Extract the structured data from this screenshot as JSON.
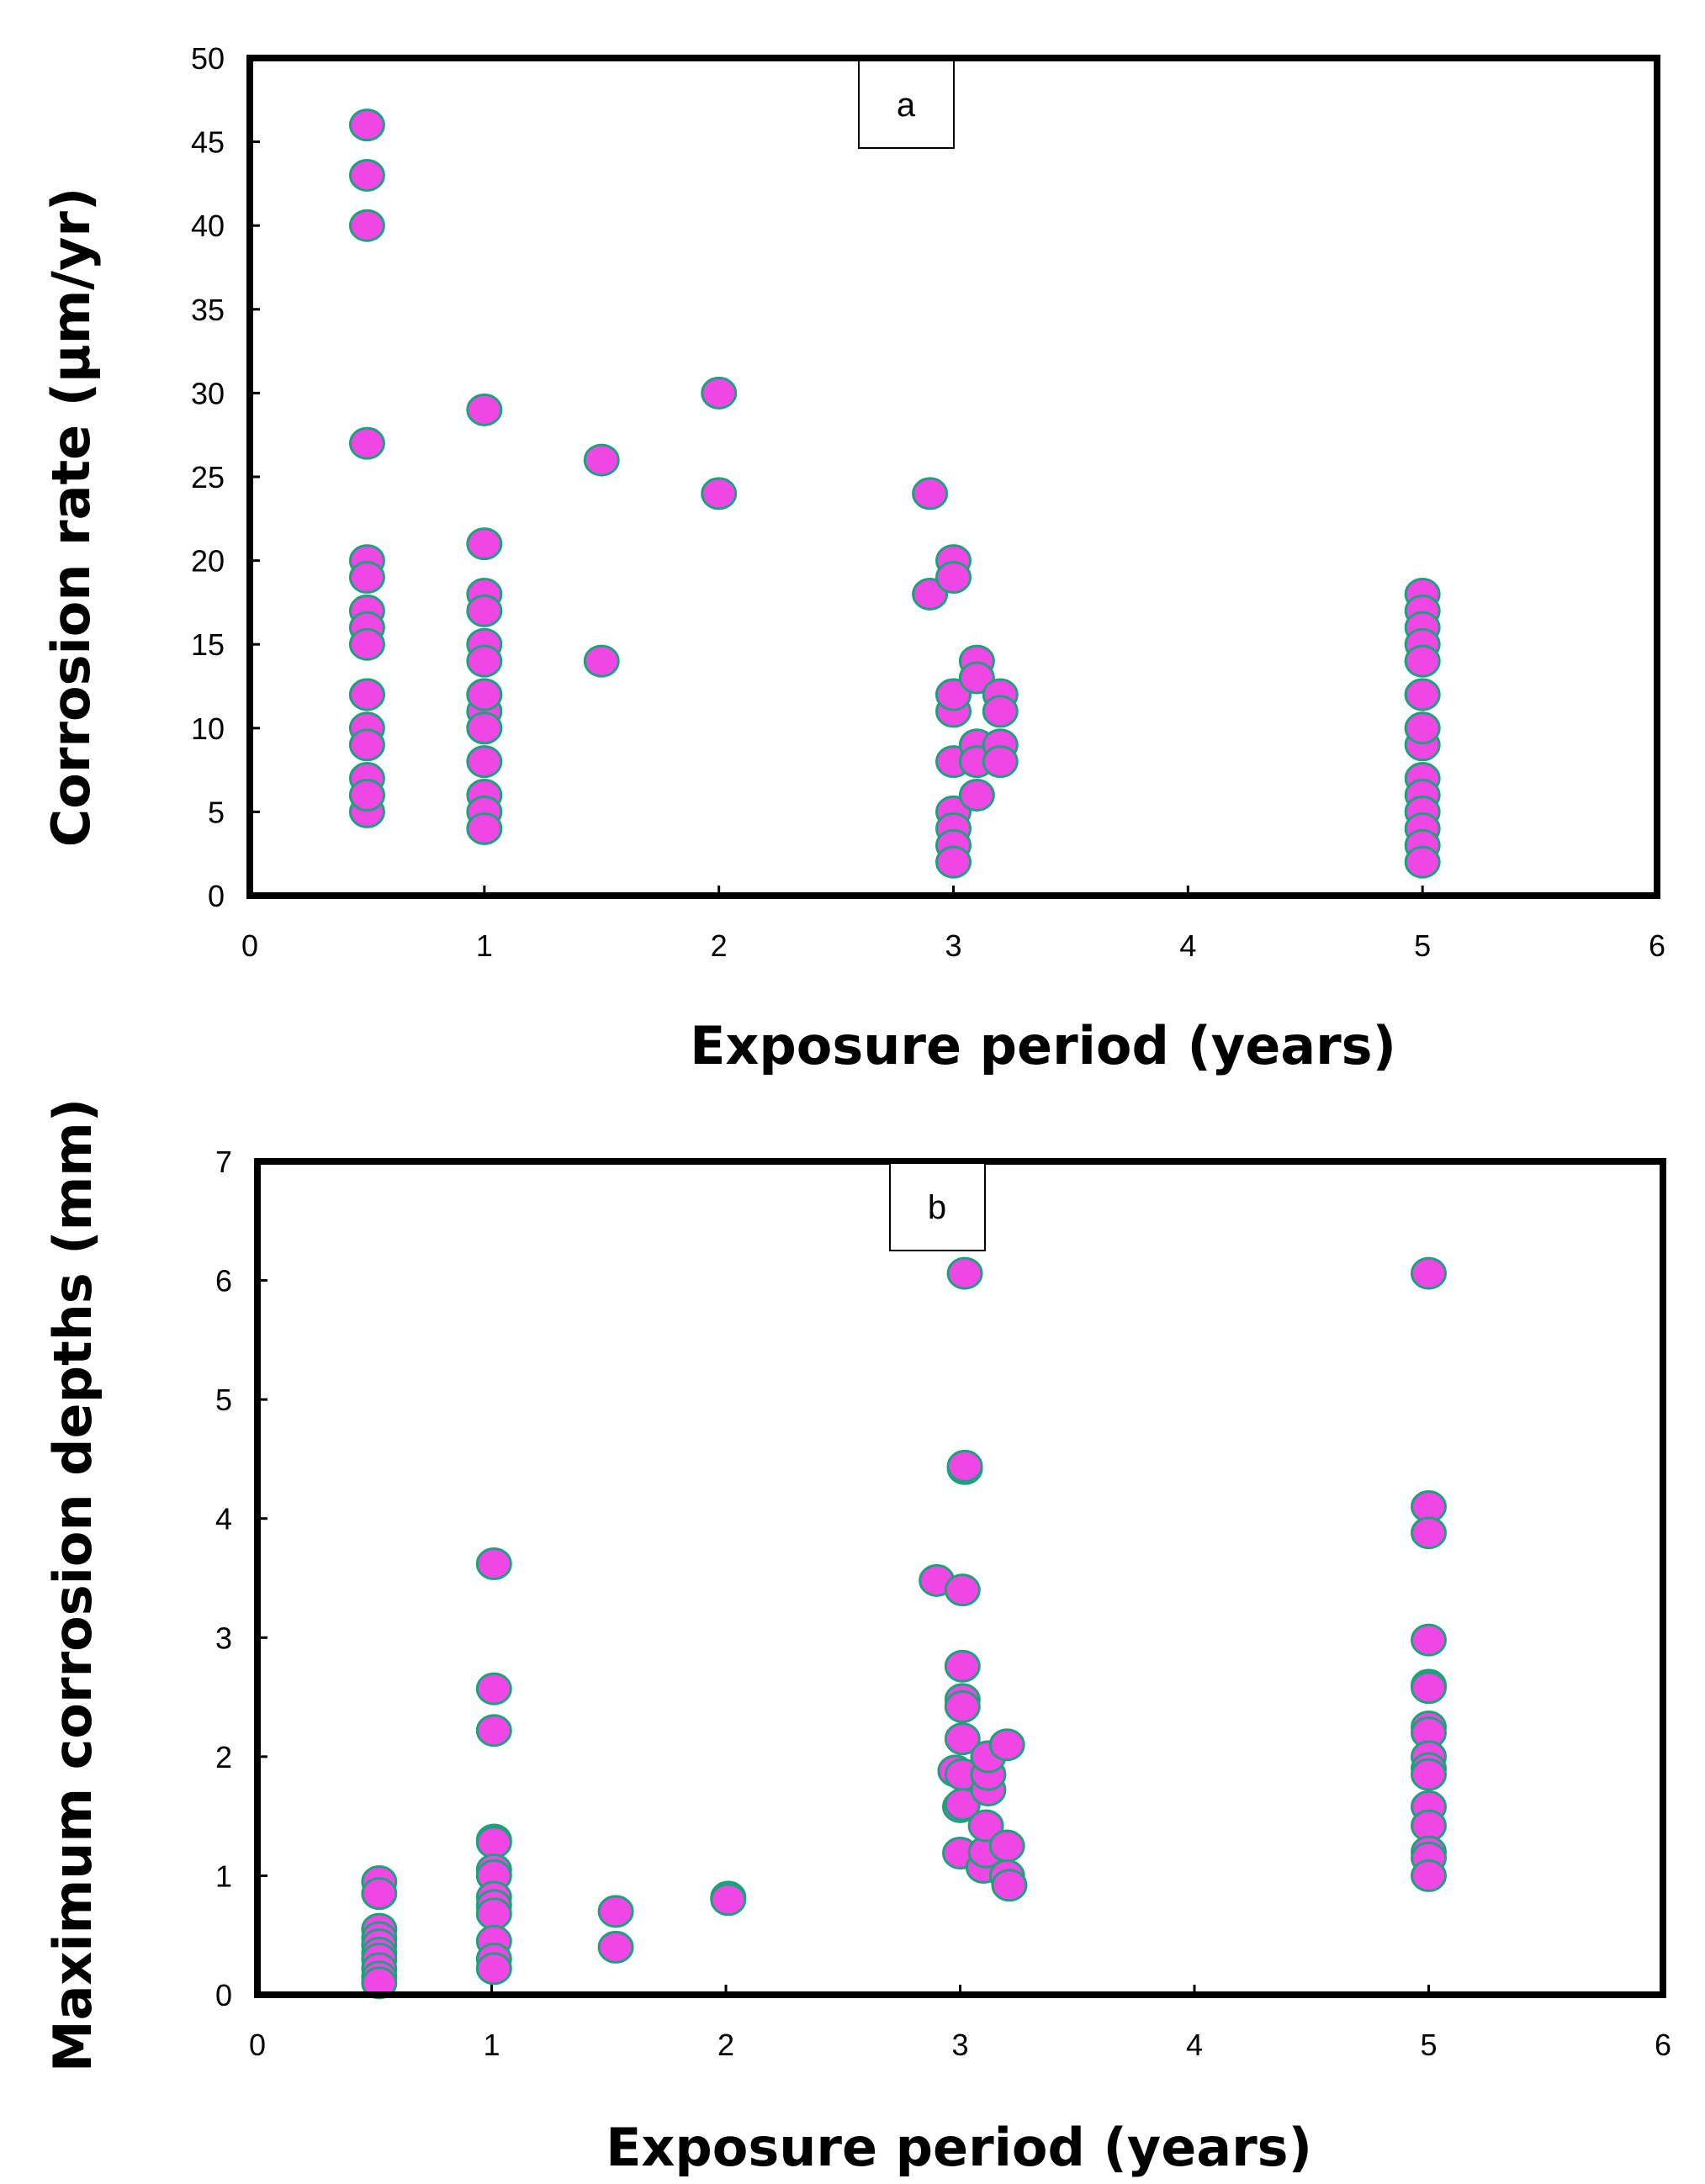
{
  "colors": {
    "marker_fill": "#f046e6",
    "marker_edge": "#1aa37a",
    "axes": "#000000"
  },
  "chart_data": [
    {
      "type": "scatter",
      "panel": "a",
      "title": "",
      "xlabel": "Exposure period (years)",
      "ylabel": "Corrosion rate (µm/yr)",
      "xlim": [
        0,
        6
      ],
      "ylim": [
        0,
        50
      ],
      "xticks": [
        "0",
        "1",
        "2",
        "3",
        "4",
        "5",
        "6"
      ],
      "yticks": [
        "0",
        "5",
        "10",
        "15",
        "20",
        "25",
        "30",
        "35",
        "40",
        "45",
        "50"
      ],
      "x": [
        0.5,
        0.5,
        0.5,
        0.5,
        0.5,
        0.5,
        0.5,
        0.5,
        0.5,
        0.5,
        0.5,
        0.5,
        0.5,
        0.5,
        0.5,
        0.5,
        0.5,
        1,
        1,
        1,
        1,
        1,
        1,
        1,
        1,
        1,
        1,
        1,
        1,
        1,
        1,
        1,
        1.5,
        1.5,
        2,
        2,
        2.9,
        2.9,
        3,
        3,
        3,
        3,
        3,
        3,
        3,
        3,
        3,
        3,
        3.1,
        3.1,
        3.1,
        3.1,
        3.1,
        3.2,
        3.2,
        3.2,
        3.2,
        5,
        5,
        5,
        5,
        5,
        5,
        5,
        5,
        5,
        5,
        5,
        5,
        5,
        5,
        5,
        5,
        5
      ],
      "y": [
        46,
        43,
        40,
        27,
        20,
        19,
        17,
        16,
        15,
        12,
        10,
        9,
        7,
        6,
        5,
        6,
        12,
        29,
        21,
        18,
        17,
        15,
        14,
        12,
        11,
        10,
        8,
        6,
        5,
        4,
        10,
        12,
        26,
        14,
        30,
        24,
        24,
        18,
        20,
        19,
        12,
        11,
        8,
        5,
        4,
        3,
        2,
        12,
        14,
        13,
        9,
        8,
        6,
        12,
        11,
        9,
        8,
        18,
        17,
        16,
        15,
        14,
        12,
        10,
        9,
        7,
        6,
        5,
        4,
        3,
        2,
        12,
        10,
        14
      ]
    },
    {
      "type": "scatter",
      "panel": "b",
      "title": "",
      "xlabel": "Exposure period (years)",
      "ylabel": "Maximum corrosion  depths (mm)",
      "xlim": [
        0,
        6
      ],
      "ylim": [
        0,
        7
      ],
      "xticks": [
        "0",
        "1",
        "2",
        "3",
        "4",
        "5",
        "6"
      ],
      "yticks": [
        "0",
        "1",
        "2",
        "3",
        "4",
        "5",
        "6",
        "7"
      ],
      "x": [
        0.52,
        0.52,
        0.52,
        0.52,
        0.52,
        0.52,
        0.52,
        0.52,
        0.52,
        0.52,
        1.01,
        1.01,
        1.01,
        1.01,
        1.01,
        1.01,
        1.01,
        1.01,
        1.01,
        1.01,
        1.01,
        1.01,
        1.01,
        1.53,
        1.53,
        2.01,
        2.01,
        2.9,
        2.98,
        3,
        3,
        3.01,
        3.01,
        3.01,
        3.01,
        3.01,
        3.01,
        3.01,
        3.02,
        3.02,
        3.02,
        3.1,
        3.11,
        3.11,
        3.12,
        3.12,
        3.12,
        3.2,
        3.2,
        3.2,
        3.21,
        5,
        5,
        5,
        5,
        5,
        5,
        5,
        5,
        5,
        5,
        5,
        5,
        5,
        5,
        5,
        5
      ],
      "y": [
        0.95,
        0.85,
        0.55,
        0.48,
        0.42,
        0.35,
        0.3,
        0.22,
        0.15,
        0.1,
        3.62,
        2.57,
        2.22,
        1.3,
        1.28,
        1.05,
        1.0,
        0.82,
        0.75,
        0.68,
        0.45,
        0.3,
        0.22,
        0.7,
        0.4,
        0.82,
        0.8,
        3.48,
        1.88,
        1.58,
        1.19,
        2.48,
        2.15,
        2.42,
        2.76,
        3.4,
        1.85,
        1.6,
        6.06,
        4.42,
        4.44,
        1.07,
        1.2,
        1.42,
        1.72,
        1.85,
        2.0,
        2.1,
        1.25,
        1.0,
        0.92,
        6.06,
        4.1,
        3.88,
        2.98,
        2.6,
        2.58,
        2.25,
        2.2,
        2.0,
        1.9,
        1.85,
        1.58,
        1.42,
        1.2,
        1.15,
        1.0
      ]
    }
  ]
}
